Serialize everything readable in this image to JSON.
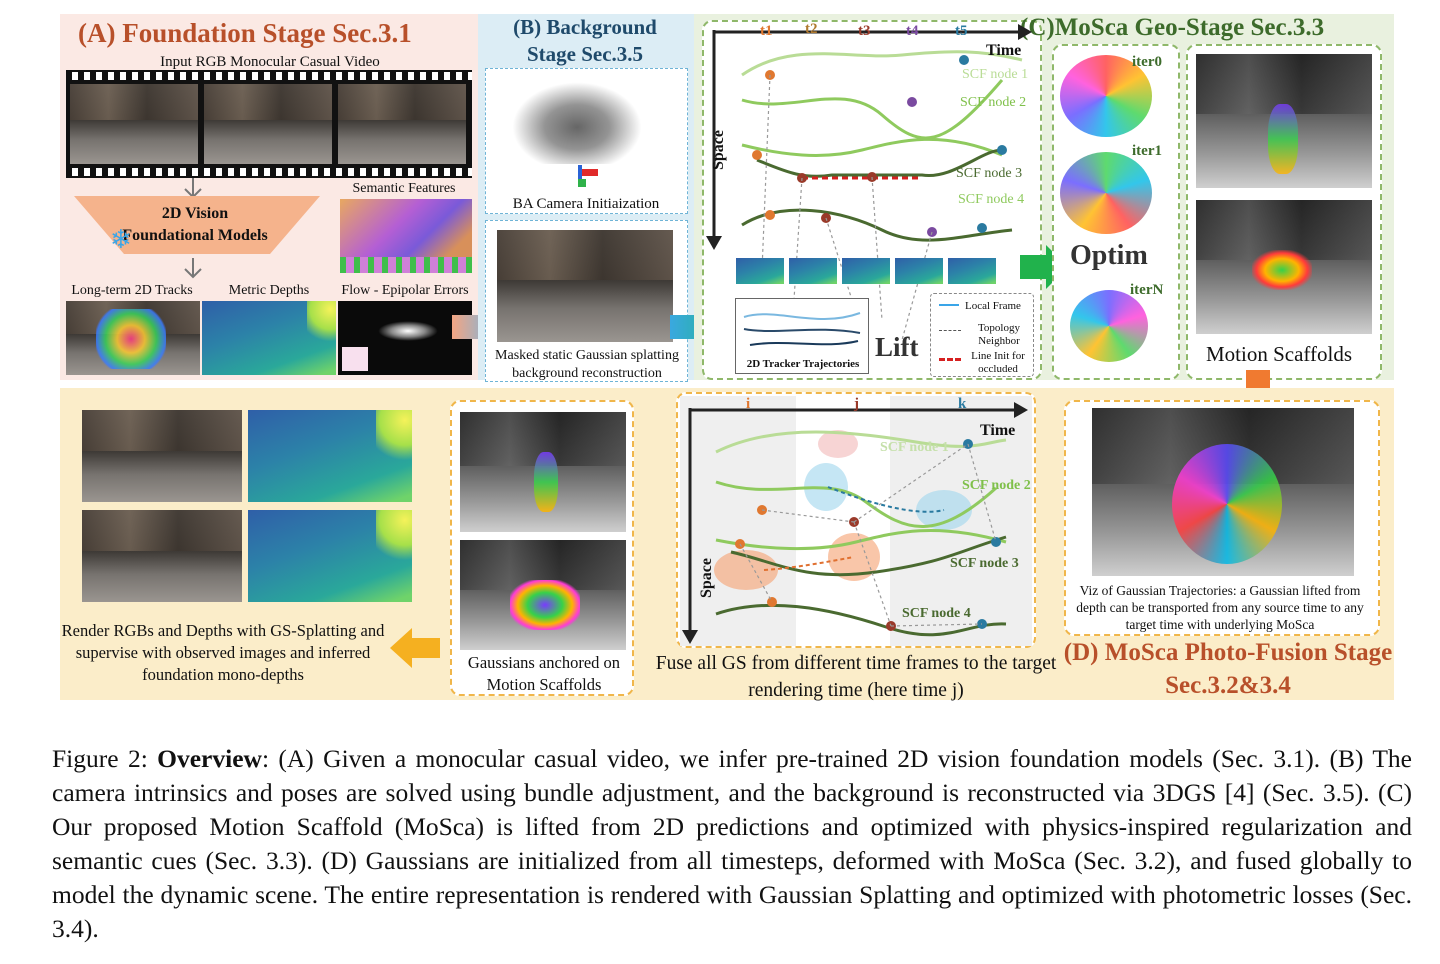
{
  "panel_a": {
    "title": "(A) Foundation Stage Sec.3.1",
    "input_label": "Input RGB Monocular Casual Video",
    "model_box": "2D Vision Foundational Models",
    "semantic_label": "Semantic Features",
    "tracks_label": "Long-term 2D Tracks",
    "depth_label": "Metric Depths",
    "flow_label": "Flow - Epipolar Errors"
  },
  "panel_b": {
    "title": "(B) Background Stage Sec.3.5",
    "ba_label": "BA Camera Initiaization",
    "static_label": "Masked static Gaussian splatting background reconstruction"
  },
  "panel_c": {
    "title": "(C)MoSca Geo-Stage Sec.3.3",
    "time_ticks": [
      "t1",
      "t2",
      "t3",
      "t4",
      "t5"
    ],
    "time_axis": "Time",
    "space_axis": "Space",
    "nodes": [
      "SCF node 1",
      "SCF node 2",
      "SCF node 3",
      "SCF node 4"
    ],
    "tracker_label": "2D Tracker Trajectories",
    "lift_label": "Lift",
    "legend": [
      "Local Frame",
      "Topology Neighbor",
      "Line Init for occluded"
    ],
    "iters": [
      "iter0",
      "iter1",
      "iterN"
    ],
    "optim_label": "Optim",
    "scaffold_label": "Motion Scaffolds"
  },
  "panel_d": {
    "render_label": "Render RGBs and Depths with GS-Splatting and supervise with observed images and inferred foundation mono-depths",
    "anchored_label": "Gaussians anchored on Motion Scaffolds",
    "fuse_ticks": [
      "i",
      "j",
      "k"
    ],
    "time_axis": "Time",
    "space_axis": "Space",
    "nodes": [
      "SCF node 1",
      "SCF node 2",
      "SCF node 3",
      "SCF node 4"
    ],
    "fuse_label": "Fuse all GS from different time frames to the target rendering time (here time j)",
    "viz_label": "Viz of Gaussian Trajectories: a Gaussian lifted from depth can be transported from any source time to any target time with underlying MoSca",
    "title": "(D) MoSca Photo-Fusion Stage Sec.3.2&3.4"
  },
  "caption": {
    "label": "Figure 2:",
    "bold": "Overview",
    "text": ": (A) Given a monocular casual video, we infer pre-trained 2D vision foundation models (Sec. 3.1). (B) The camera intrinsics and poses are solved using bundle adjustment, and the background is reconstructed via 3DGS [4] (Sec. 3.5). (C) Our proposed Motion Scaffold (MoSca) is lifted from 2D predictions and optimized with physics-inspired regularization and semantic cues (Sec. 3.3). (D) Gaussians are initialized from all timesteps, deformed with MoSca (Sec. 3.2), and fused globally to model the dynamic scene. The entire representation is rendered with Gaussian Splatting and optimized with photometric losses (Sec. 3.4)."
  },
  "colors": {
    "panel_a_bg": "#fbe9e4",
    "panel_b_bg": "#dcedf5",
    "panel_c_bg": "#e9f1df",
    "panel_d_bg": "#fbedc9",
    "accent_orange": "#f0a020",
    "accent_green": "#21b24c"
  }
}
